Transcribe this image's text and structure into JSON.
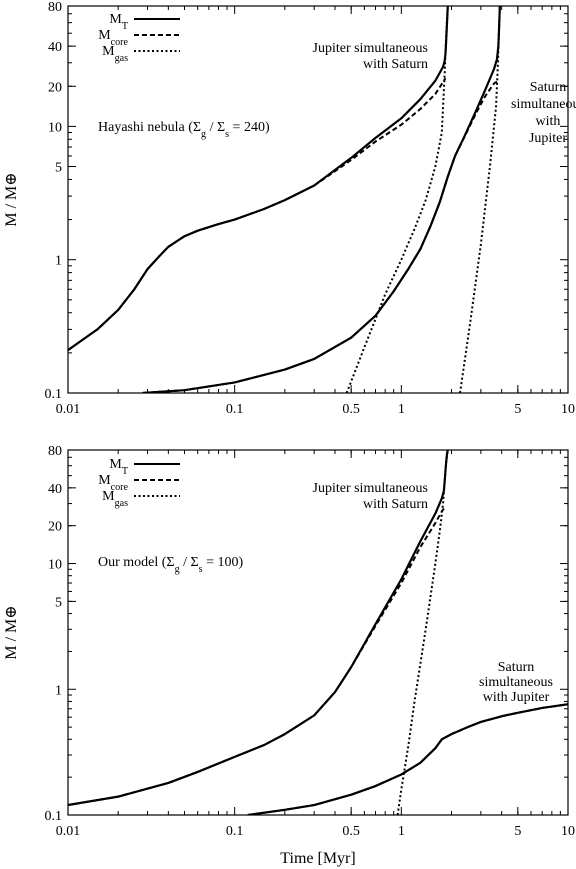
{
  "chart_data": [
    {
      "type": "line",
      "panel": "top",
      "xscale": "log",
      "yscale": "log",
      "xlim": [
        0.01,
        10
      ],
      "ylim": [
        0.1,
        80
      ],
      "xticks": [
        0.01,
        0.1,
        0.5,
        1,
        5,
        10
      ],
      "xtick_labels": [
        "0.01",
        "0.1",
        "0.5",
        "1",
        "5",
        "10"
      ],
      "yticks": [
        0.1,
        1,
        5,
        10,
        20,
        40,
        80
      ],
      "ytick_labels": [
        "0.1",
        "1",
        "5",
        "10",
        "20",
        "40",
        "80"
      ],
      "xlabel": "",
      "ylabel": "M / M⊕",
      "grid": false,
      "legend": {
        "placement": "top-left",
        "labels": [
          "M_T",
          "M_core",
          "M_gas"
        ]
      },
      "annotations": [
        {
          "text": "Hayashi nebula (Σ_g / Σ_s = 240)"
        },
        {
          "text": "Jupiter simultaneous\nwith Saturn"
        },
        {
          "text": "Saturn\nsimultaneous\nwith\nJupiter"
        }
      ],
      "series": [
        {
          "name": "M_T",
          "style": "solid",
          "group": "Jupiter",
          "x": [
            0.01,
            0.015,
            0.02,
            0.025,
            0.03,
            0.035,
            0.04,
            0.05,
            0.06,
            0.08,
            0.1,
            0.15,
            0.2,
            0.3,
            0.5,
            0.7,
            1.0,
            1.3,
            1.6,
            1.78,
            1.82,
            1.84,
            1.86,
            1.88,
            1.9
          ],
          "y": [
            0.21,
            0.3,
            0.42,
            0.6,
            0.85,
            1.05,
            1.25,
            1.5,
            1.65,
            1.85,
            2.0,
            2.4,
            2.8,
            3.6,
            5.8,
            8.2,
            11.5,
            16,
            22,
            28,
            31,
            35,
            45,
            60,
            80
          ]
        },
        {
          "name": "M_core",
          "style": "dashed",
          "group": "Jupiter",
          "x": [
            0.01,
            0.015,
            0.02,
            0.025,
            0.03,
            0.035,
            0.04,
            0.05,
            0.06,
            0.08,
            0.1,
            0.15,
            0.2,
            0.3,
            0.5,
            0.7,
            1.0,
            1.3,
            1.6,
            1.78,
            1.84
          ],
          "y": [
            0.21,
            0.3,
            0.42,
            0.6,
            0.85,
            1.05,
            1.25,
            1.5,
            1.65,
            1.85,
            2.0,
            2.4,
            2.8,
            3.6,
            5.6,
            7.7,
            10.3,
            13.5,
            17.5,
            21.5,
            23
          ]
        },
        {
          "name": "M_gas",
          "style": "dotted",
          "group": "Jupiter",
          "x": [
            0.47,
            0.6,
            0.8,
            1.0,
            1.2,
            1.4,
            1.6,
            1.75,
            1.82,
            1.86,
            1.9
          ],
          "y": [
            0.1,
            0.22,
            0.55,
            1.0,
            1.7,
            2.8,
            5.0,
            9.0,
            25,
            50,
            80
          ]
        },
        {
          "name": "M_T",
          "style": "solid",
          "group": "Saturn",
          "x": [
            0.028,
            0.05,
            0.1,
            0.2,
            0.3,
            0.5,
            0.7,
            0.9,
            1.1,
            1.3,
            1.5,
            1.7,
            1.9,
            2.1,
            2.4,
            2.8,
            3.2,
            3.6,
            3.75,
            3.82,
            3.86,
            3.9
          ],
          "y": [
            0.1,
            0.105,
            0.12,
            0.15,
            0.18,
            0.26,
            0.38,
            0.58,
            0.85,
            1.2,
            1.8,
            2.7,
            4.2,
            6.0,
            8.5,
            13,
            19,
            27,
            32,
            40,
            55,
            80
          ]
        },
        {
          "name": "M_core",
          "style": "dashed",
          "group": "Saturn",
          "x": [
            0.028,
            0.05,
            0.1,
            0.2,
            0.3,
            0.5,
            0.7,
            0.9,
            1.1,
            1.3,
            1.5,
            1.7,
            1.9,
            2.1,
            2.4,
            2.8,
            3.2,
            3.6,
            3.82
          ],
          "y": [
            0.1,
            0.105,
            0.12,
            0.15,
            0.18,
            0.26,
            0.38,
            0.58,
            0.85,
            1.2,
            1.8,
            2.7,
            4.2,
            6.0,
            8.4,
            12.5,
            17,
            21,
            22
          ]
        },
        {
          "name": "M_gas",
          "style": "dotted",
          "group": "Saturn",
          "x": [
            2.25,
            2.6,
            3.0,
            3.4,
            3.7,
            3.8,
            3.86,
            3.9
          ],
          "y": [
            0.1,
            0.35,
            1.3,
            5.0,
            14,
            30,
            55,
            80
          ]
        }
      ]
    },
    {
      "type": "line",
      "panel": "bottom",
      "xscale": "log",
      "yscale": "log",
      "xlim": [
        0.01,
        10
      ],
      "ylim": [
        0.1,
        80
      ],
      "xticks": [
        0.01,
        0.1,
        0.5,
        1,
        5,
        10
      ],
      "xtick_labels": [
        "0.01",
        "0.1",
        "0.5",
        "1",
        "5",
        "10"
      ],
      "yticks": [
        0.1,
        1,
        5,
        10,
        20,
        40,
        80
      ],
      "ytick_labels": [
        "0.1",
        "1",
        "5",
        "10",
        "20",
        "40",
        "80"
      ],
      "xlabel": "Time [Myr]",
      "ylabel": "M / M⊕",
      "grid": false,
      "legend": {
        "placement": "top-left",
        "labels": [
          "M_T",
          "M_core",
          "M_gas"
        ]
      },
      "annotations": [
        {
          "text": "Our model (Σ_g / Σ_s = 100)"
        },
        {
          "text": "Jupiter simultaneous\nwith Saturn"
        },
        {
          "text": "Saturn\nsimultaneous\nwith Jupiter"
        }
      ],
      "series": [
        {
          "name": "M_T",
          "style": "solid",
          "group": "Jupiter",
          "x": [
            0.01,
            0.02,
            0.04,
            0.06,
            0.1,
            0.15,
            0.2,
            0.3,
            0.4,
            0.5,
            0.7,
            1.0,
            1.3,
            1.6,
            1.75,
            1.8,
            1.82,
            1.84,
            1.86,
            1.88,
            1.9
          ],
          "y": [
            0.12,
            0.14,
            0.18,
            0.22,
            0.29,
            0.36,
            0.44,
            0.62,
            0.95,
            1.5,
            3.3,
            7.5,
            15,
            25,
            33,
            38,
            45,
            55,
            65,
            75,
            80
          ]
        },
        {
          "name": "M_core",
          "style": "dashed",
          "group": "Jupiter",
          "x": [
            0.01,
            0.02,
            0.04,
            0.06,
            0.1,
            0.15,
            0.2,
            0.3,
            0.4,
            0.5,
            0.7,
            1.0,
            1.3,
            1.6,
            1.75,
            1.82
          ],
          "y": [
            0.12,
            0.14,
            0.18,
            0.22,
            0.29,
            0.36,
            0.44,
            0.62,
            0.95,
            1.5,
            3.2,
            7.0,
            13.5,
            21,
            26,
            28
          ]
        },
        {
          "name": "M_gas",
          "style": "dotted",
          "group": "Jupiter",
          "x": [
            0.95,
            1.0,
            1.1,
            1.2,
            1.4,
            1.6,
            1.7,
            1.78,
            1.82,
            1.86,
            1.9
          ],
          "y": [
            0.1,
            0.16,
            0.35,
            0.8,
            3.0,
            10,
            18,
            30,
            45,
            65,
            80
          ]
        },
        {
          "name": "M_T",
          "style": "solid",
          "group": "Saturn",
          "x": [
            0.12,
            0.2,
            0.3,
            0.5,
            0.7,
            1.0,
            1.3,
            1.6,
            1.75,
            2.0,
            2.5,
            3.0,
            4.0,
            5.0,
            7.0,
            10.0
          ],
          "y": [
            0.1,
            0.11,
            0.12,
            0.145,
            0.17,
            0.21,
            0.26,
            0.34,
            0.4,
            0.44,
            0.5,
            0.55,
            0.61,
            0.65,
            0.71,
            0.76
          ]
        },
        {
          "name": "M_core",
          "style": "dashed",
          "group": "Saturn",
          "x": [
            0.12,
            0.2,
            0.3,
            0.5,
            0.7,
            1.0,
            1.3,
            1.6,
            1.75,
            2.0,
            2.5,
            3.0,
            4.0,
            5.0,
            7.0,
            10.0
          ],
          "y": [
            0.1,
            0.11,
            0.12,
            0.145,
            0.17,
            0.21,
            0.26,
            0.34,
            0.4,
            0.44,
            0.5,
            0.55,
            0.61,
            0.65,
            0.71,
            0.76
          ]
        }
      ]
    }
  ]
}
